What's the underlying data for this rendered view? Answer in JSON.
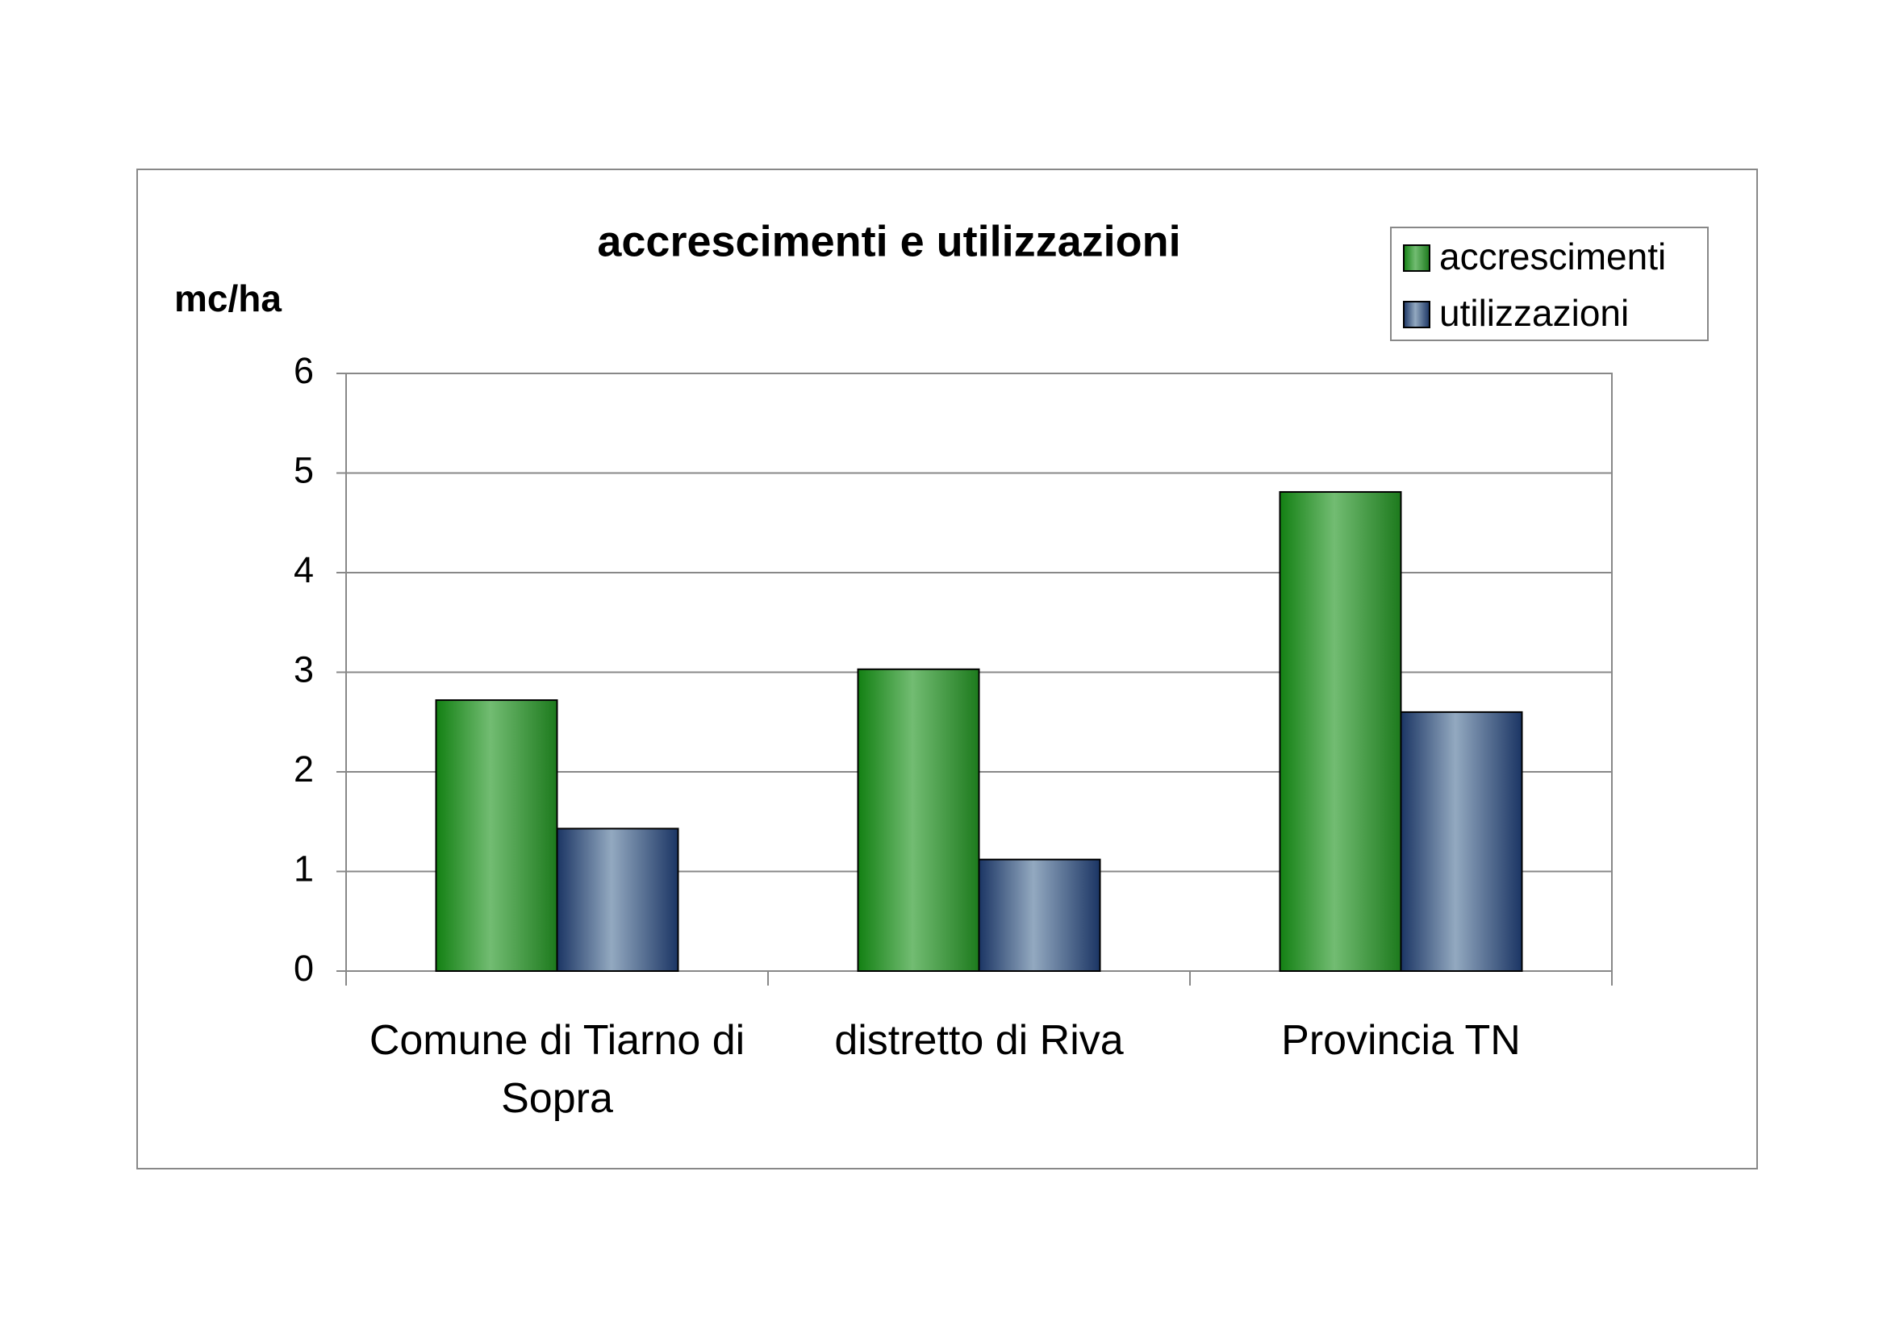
{
  "chart_data": {
    "type": "bar",
    "title": "accrescimenti e utilizzazioni",
    "y_label": "mc/ha",
    "categories": [
      "Comune di Tiarno di Sopra",
      "distretto di Riva",
      "Provincia TN"
    ],
    "series": [
      {
        "name": "accrescimenti",
        "color": "#72bc72",
        "values": [
          2.72,
          3.03,
          4.81
        ]
      },
      {
        "name": "utilizzazioni",
        "color": "#93a9c0",
        "values": [
          1.43,
          1.12,
          2.6
        ]
      }
    ],
    "ylim": [
      0,
      6
    ],
    "yticks": [
      0,
      1,
      2,
      3,
      4,
      5,
      6
    ],
    "grid": true,
    "legend": "top-right"
  }
}
